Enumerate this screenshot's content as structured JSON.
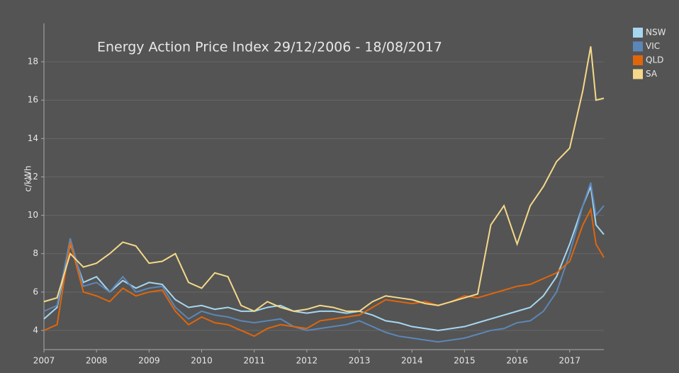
{
  "chart_data": {
    "type": "line",
    "title": "Energy Action Price Index 29/12/2006 - 18/08/2017",
    "y_label": "c/kWh",
    "x": [
      2007,
      2007.25,
      2007.5,
      2007.75,
      2008,
      2008.25,
      2008.5,
      2008.75,
      2009,
      2009.25,
      2009.5,
      2009.75,
      2010,
      2010.25,
      2010.5,
      2010.75,
      2011,
      2011.25,
      2011.5,
      2011.75,
      2012,
      2012.25,
      2012.5,
      2012.75,
      2013,
      2013.25,
      2013.5,
      2013.75,
      2014,
      2014.25,
      2014.5,
      2014.75,
      2015,
      2015.25,
      2015.5,
      2015.75,
      2016,
      2016.25,
      2016.5,
      2016.75,
      2017,
      2017.25,
      2017.4,
      2017.5,
      2017.65
    ],
    "series": [
      {
        "name": "NSW",
        "color": "#a6d7f0",
        "values": [
          4.6,
          5.2,
          8.5,
          6.5,
          6.8,
          6.0,
          6.6,
          6.2,
          6.5,
          6.4,
          5.6,
          5.2,
          5.3,
          5.1,
          5.2,
          5.0,
          5.0,
          5.2,
          5.3,
          5.0,
          4.9,
          5.0,
          5.0,
          4.9,
          5.0,
          4.8,
          4.5,
          4.4,
          4.2,
          4.1,
          4.0,
          4.1,
          4.2,
          4.4,
          4.6,
          4.8,
          5.0,
          5.2,
          5.8,
          6.8,
          8.5,
          10.5,
          11.5,
          9.5,
          9.0
        ]
      },
      {
        "name": "VIC",
        "color": "#5b87b8",
        "values": [
          5.0,
          5.3,
          8.8,
          6.3,
          6.5,
          6.0,
          6.8,
          6.0,
          6.2,
          6.3,
          5.2,
          4.6,
          5.0,
          4.8,
          4.7,
          4.5,
          4.4,
          4.5,
          4.6,
          4.2,
          4.0,
          4.1,
          4.2,
          4.3,
          4.5,
          4.2,
          3.9,
          3.7,
          3.6,
          3.5,
          3.4,
          3.5,
          3.6,
          3.8,
          4.0,
          4.1,
          4.4,
          4.5,
          5.0,
          6.0,
          8.0,
          10.5,
          11.7,
          10.0,
          10.5
        ]
      },
      {
        "name": "QLD",
        "color": "#e0660b",
        "values": [
          4.0,
          4.3,
          8.6,
          6.0,
          5.8,
          5.5,
          6.2,
          5.8,
          6.0,
          6.1,
          5.0,
          4.3,
          4.7,
          4.4,
          4.3,
          4.0,
          3.7,
          4.1,
          4.3,
          4.2,
          4.1,
          4.5,
          4.6,
          4.7,
          4.8,
          5.2,
          5.6,
          5.5,
          5.4,
          5.5,
          5.3,
          5.5,
          5.8,
          5.7,
          5.9,
          6.1,
          6.3,
          6.4,
          6.7,
          7.0,
          7.6,
          9.5,
          10.3,
          8.5,
          7.8
        ]
      },
      {
        "name": "SA",
        "color": "#f5d98a",
        "values": [
          5.5,
          5.7,
          8.0,
          7.3,
          7.5,
          8.0,
          8.6,
          8.4,
          7.5,
          7.6,
          8.0,
          6.5,
          6.2,
          7.0,
          6.8,
          5.3,
          5.0,
          5.5,
          5.2,
          5.0,
          5.1,
          5.3,
          5.2,
          5.0,
          5.0,
          5.5,
          5.8,
          5.7,
          5.6,
          5.4,
          5.3,
          5.5,
          5.7,
          5.9,
          9.5,
          10.5,
          8.5,
          10.5,
          11.5,
          12.8,
          13.5,
          16.5,
          18.8,
          16.0,
          16.1
        ]
      }
    ],
    "xlim": [
      2007,
      2017.65
    ],
    "xticks": [
      2007,
      2008,
      2009,
      2010,
      2011,
      2012,
      2013,
      2014,
      2015,
      2016,
      2017
    ],
    "ylim": [
      3,
      20
    ],
    "yticks": [
      4,
      6,
      8,
      10,
      12,
      14,
      16,
      18
    ],
    "grid": true,
    "legend": "top-right"
  }
}
